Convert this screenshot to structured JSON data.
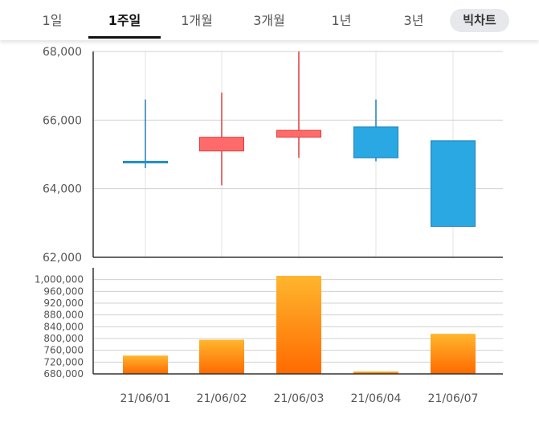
{
  "tabs": [
    {
      "label": "1일",
      "active": false
    },
    {
      "label": "1주일",
      "active": true
    },
    {
      "label": "1개월",
      "active": false
    },
    {
      "label": "3개월",
      "active": false
    },
    {
      "label": "1년",
      "active": false
    },
    {
      "label": "3년",
      "active": false
    }
  ],
  "big_chart_label": "빅차트",
  "colors": {
    "up": "#ff6b6b",
    "up_border": "#e03c3c",
    "down": "#29a8e3",
    "down_border": "#1f7fb4",
    "volume_top": "#ffb62e",
    "volume_bottom": "#ff6a00",
    "grid": "#d0d0d0",
    "axis": "#333333",
    "label": "#555555"
  },
  "chart_data": [
    {
      "type": "candlestick",
      "categories": [
        "21/06/01",
        "21/06/02",
        "21/06/03",
        "21/06/04",
        "21/06/07"
      ],
      "open": [
        64800,
        65100,
        65500,
        65800,
        65400
      ],
      "high": [
        66600,
        66800,
        68000,
        66600,
        65400
      ],
      "low": [
        64600,
        64100,
        64900,
        64800,
        62900
      ],
      "close": [
        64750,
        65500,
        65700,
        64900,
        62900
      ],
      "ylim": [
        62000,
        68000
      ],
      "yticks": [
        62000,
        64000,
        66000,
        68000
      ],
      "ytick_labels": [
        "62,000",
        "64,000",
        "66,000",
        "68,000"
      ],
      "grid": true
    },
    {
      "type": "bar",
      "categories": [
        "21/06/01",
        "21/06/02",
        "21/06/03",
        "21/06/04",
        "21/06/07"
      ],
      "values": [
        742000,
        796000,
        1050000,
        688000,
        816000
      ],
      "ylim": [
        680000,
        1040000
      ],
      "yticks": [
        680000,
        720000,
        760000,
        800000,
        840000,
        880000,
        920000,
        960000,
        1000000
      ],
      "ytick_labels": [
        "680,000",
        "720,000",
        "760,000",
        "800,000",
        "840,000",
        "880,000",
        "920,000",
        "960,000",
        "1,000,000"
      ],
      "xtick_labels": [
        "21/06/01",
        "21/06/02",
        "21/06/03",
        "21/06/04",
        "21/06/07"
      ],
      "grid": true
    }
  ]
}
